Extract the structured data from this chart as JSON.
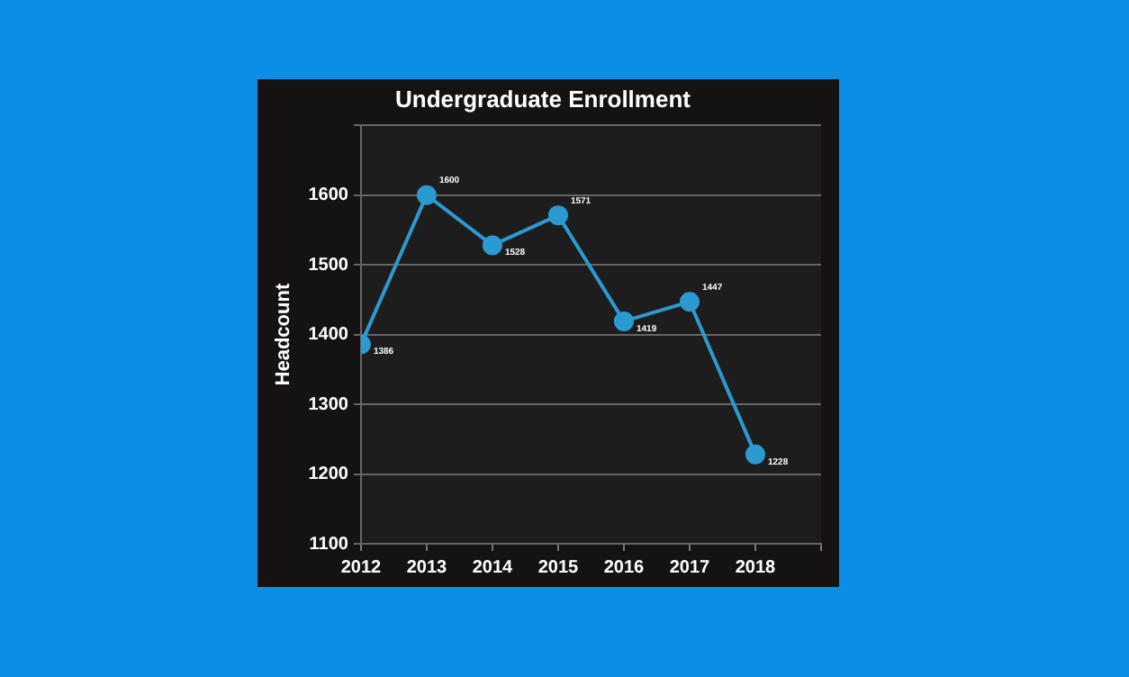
{
  "chart_data": {
    "type": "line",
    "title": "Undergraduate Enrollment",
    "ylabel": "Headcount",
    "x": [
      2012,
      2013,
      2014,
      2015,
      2016,
      2017,
      2018
    ],
    "series": [
      {
        "color": "#2b9ad2",
        "values": [
          1386,
          1600,
          1528,
          1571,
          1419,
          1447,
          1228
        ]
      }
    ],
    "xlim": [
      2012,
      2019
    ],
    "xticks": [
      2012,
      2013,
      2014,
      2015,
      2016,
      2017,
      2018,
      {
        "value": 2019,
        "label": null
      }
    ],
    "ylim": [
      1100,
      1700
    ],
    "yticks": [
      1100,
      1200,
      1300,
      1400,
      1500,
      1600,
      {
        "value": 1700,
        "label": null
      }
    ],
    "grid": "y",
    "legend": false,
    "marker": "circle",
    "line_style": "solid",
    "data_labels": true
  }
}
